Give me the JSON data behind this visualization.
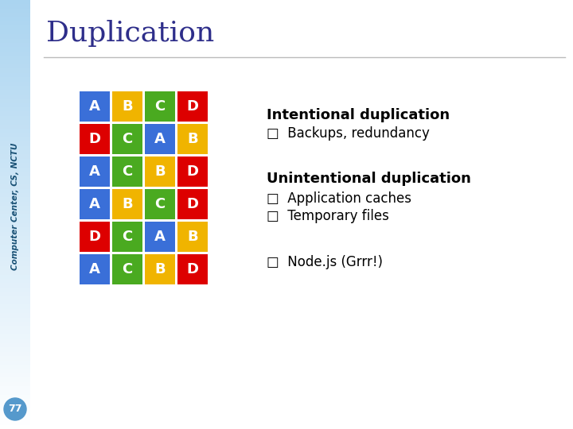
{
  "title": "Duplication",
  "title_color": "#2e2e8a",
  "title_fontsize": 26,
  "sidebar_color_top": "#aad4f0",
  "sidebar_color_bottom": "#ffffff",
  "sidebar_text": "Computer Center, CS, NCTU",
  "sidebar_text_color": "#1a5276",
  "page_number": "77",
  "page_number_bg": "#5599cc",
  "main_background": "#ffffff",
  "grid": [
    [
      "A",
      "B",
      "C",
      "D"
    ],
    [
      "D",
      "C",
      "A",
      "B"
    ],
    [
      "A",
      "C",
      "B",
      "D"
    ],
    [
      "A",
      "B",
      "C",
      "D"
    ],
    [
      "D",
      "C",
      "A",
      "B"
    ],
    [
      "A",
      "C",
      "B",
      "D"
    ]
  ],
  "cell_colors": {
    "A": "#3a6fd8",
    "B": "#f0b400",
    "C": "#4aaa20",
    "D": "#dd0000"
  },
  "cell_text_color": "#ffffff",
  "cell_fontsize": 13,
  "section1_title": "Intentional duplication",
  "section1_bullets": [
    "Backups, redundancy"
  ],
  "section2_title": "Unintentional duplication",
  "section2_bullets": [
    "Application caches",
    "Temporary files"
  ],
  "section3_bullets": [
    "Node.js (Grrr!)"
  ],
  "section_title_fontsize": 13,
  "bullet_fontsize": 12,
  "bullet_char": "□",
  "divider_color": "#bbbbbb"
}
